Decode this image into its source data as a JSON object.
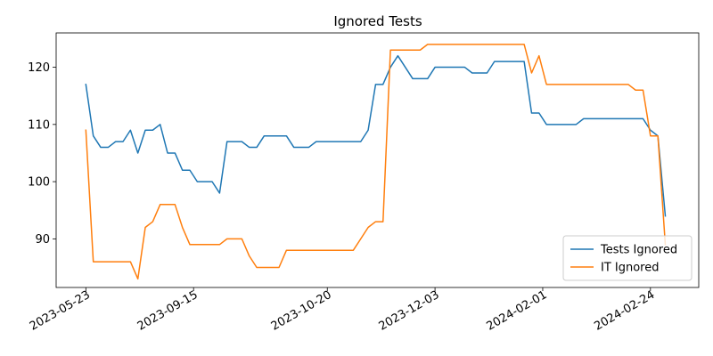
{
  "chart_data": {
    "type": "line",
    "title": "Ignored Tests",
    "xlabel": "",
    "ylabel": "",
    "x_tick_labels": [
      "2023-05-23",
      "2023-09-15",
      "2023-10-20",
      "2023-12-03",
      "2024-02-01",
      "2024-02-24"
    ],
    "x_tick_positions": [
      0,
      14.5,
      32.5,
      47,
      61.5,
      76
    ],
    "xlim": [
      -4,
      82.5
    ],
    "ylim": [
      81.5,
      126
    ],
    "y_ticks": [
      90,
      100,
      110,
      120
    ],
    "legend_position": "lower-right",
    "grid": false,
    "series": [
      {
        "name": "Tests Ignored",
        "color": "#1f77b4",
        "x": [
          0,
          1,
          2,
          3,
          4,
          5,
          6,
          7,
          8,
          9,
          10,
          11,
          12,
          13,
          14,
          15,
          16,
          17,
          18,
          19,
          20,
          21,
          22,
          23,
          24,
          25,
          26,
          27,
          28,
          29,
          30,
          31,
          32,
          33,
          34,
          35,
          36,
          37,
          38,
          39,
          40,
          41,
          42,
          43,
          44,
          45,
          46,
          47,
          48,
          49,
          50,
          51,
          52,
          53,
          54,
          55,
          56,
          57,
          58,
          59,
          60,
          61,
          62,
          63,
          64,
          65,
          66,
          67,
          68,
          69,
          70,
          71,
          72,
          73,
          74,
          75,
          76,
          77,
          78
        ],
        "y": [
          117,
          108,
          106,
          106,
          107,
          107,
          109,
          105,
          109,
          109,
          110,
          105,
          105,
          102,
          102,
          100,
          100,
          100,
          98,
          107,
          107,
          107,
          106,
          106,
          108,
          108,
          108,
          108,
          106,
          106,
          106,
          107,
          107,
          107,
          107,
          107,
          107,
          107,
          109,
          117,
          117,
          120,
          122,
          120,
          118,
          118,
          118,
          120,
          120,
          120,
          120,
          120,
          119,
          119,
          119,
          121,
          121,
          121,
          121,
          121,
          112,
          112,
          110,
          110,
          110,
          110,
          110,
          111,
          111,
          111,
          111,
          111,
          111,
          111,
          111,
          111,
          109,
          108,
          94
        ]
      },
      {
        "name": "IT Ignored",
        "color": "#ff7f0e",
        "x": [
          0,
          1,
          2,
          3,
          4,
          5,
          6,
          7,
          8,
          9,
          10,
          11,
          12,
          13,
          14,
          15,
          16,
          17,
          18,
          19,
          20,
          21,
          22,
          23,
          24,
          25,
          26,
          27,
          28,
          29,
          30,
          31,
          32,
          33,
          34,
          35,
          36,
          37,
          38,
          39,
          40,
          41,
          42,
          43,
          44,
          45,
          46,
          47,
          48,
          49,
          50,
          51,
          52,
          53,
          54,
          55,
          56,
          57,
          58,
          59,
          60,
          61,
          62,
          63,
          64,
          65,
          66,
          67,
          68,
          69,
          70,
          71,
          72,
          73,
          74,
          75,
          76,
          77,
          78
        ],
        "y": [
          109,
          86,
          86,
          86,
          86,
          86,
          86,
          83,
          92,
          93,
          96,
          96,
          96,
          92,
          89,
          89,
          89,
          89,
          89,
          90,
          90,
          90,
          87,
          85,
          85,
          85,
          85,
          88,
          88,
          88,
          88,
          88,
          88,
          88,
          88,
          88,
          88,
          90,
          92,
          93,
          93,
          123,
          123,
          123,
          123,
          123,
          124,
          124,
          124,
          124,
          124,
          124,
          124,
          124,
          124,
          124,
          124,
          124,
          124,
          124,
          119,
          122,
          117,
          117,
          117,
          117,
          117,
          117,
          117,
          117,
          117,
          117,
          117,
          117,
          116,
          116,
          108,
          108,
          89
        ]
      }
    ]
  }
}
